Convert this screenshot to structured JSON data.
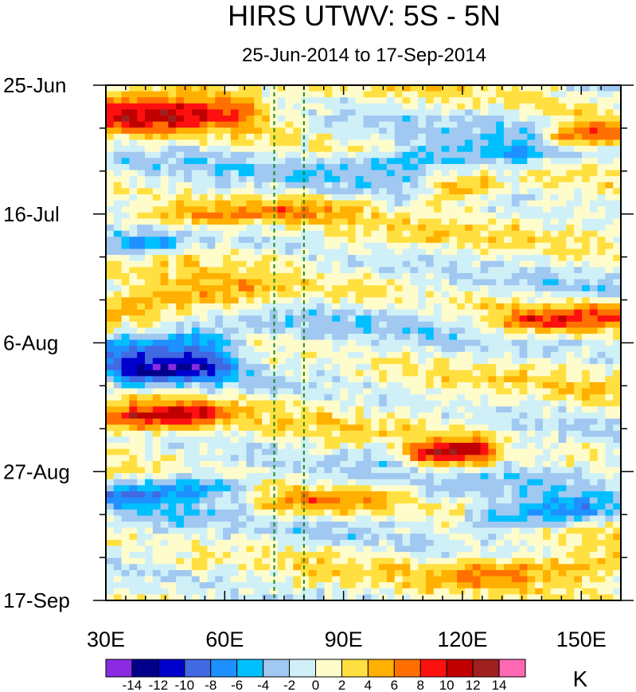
{
  "chart_data": {
    "type": "heatmap",
    "title": "HIRS UTWV: 5S - 5N",
    "subtitle": "25-Jun-2014 to 17-Sep-2014",
    "x_axis": {
      "range": [
        30,
        160
      ],
      "ticks": [
        30,
        60,
        90,
        120,
        150
      ],
      "tick_labels": [
        "30E",
        "60E",
        "90E",
        "120E",
        "150E"
      ]
    },
    "y_axis": {
      "range_days": [
        0,
        84
      ],
      "ticks_days": [
        0,
        21,
        42,
        63,
        84
      ],
      "tick_labels": [
        "25-Jun",
        "16-Jul",
        "6-Aug",
        "27-Aug",
        "17-Sep"
      ]
    },
    "reference_lines_lon": [
      72.5,
      80
    ],
    "colorbar": {
      "unit": "K",
      "levels": [
        -14,
        -12,
        -10,
        -8,
        -6,
        -4,
        -2,
        0,
        2,
        4,
        6,
        8,
        10,
        12,
        14
      ],
      "colors": [
        "#8a2be2",
        "#00008b",
        "#0000cd",
        "#4169e1",
        "#1e90ff",
        "#00bfff",
        "#a0c8f0",
        "#d0f0f8",
        "#fffccc",
        "#ffe040",
        "#ffb000",
        "#ff7000",
        "#ff1010",
        "#c00000",
        "#a02020",
        "#ff69b4"
      ]
    },
    "anomaly_bands": [
      {
        "day": 2,
        "lon": [
          30,
          60
        ],
        "value": 5
      },
      {
        "day": 5,
        "lon": [
          30,
          70
        ],
        "value": 8
      },
      {
        "day": 8,
        "lon": [
          145,
          160
        ],
        "value": 10
      },
      {
        "day": 12,
        "lon": [
          95,
          140
        ],
        "value": -5
      },
      {
        "day": 17,
        "lon": [
          115,
          125
        ],
        "value": 6
      },
      {
        "day": 21,
        "lon": [
          30,
          90
        ],
        "value": 5
      },
      {
        "day": 26,
        "lon": [
          30,
          45
        ],
        "value": -6
      },
      {
        "day": 35,
        "lon": [
          30,
          70
        ],
        "value": 6
      },
      {
        "day": 38,
        "lon": [
          130,
          160
        ],
        "value": 8
      },
      {
        "day": 42,
        "lon": [
          30,
          60
        ],
        "value": -7
      },
      {
        "day": 46,
        "lon": [
          35,
          60
        ],
        "value": -10
      },
      {
        "day": 54,
        "lon": [
          30,
          55
        ],
        "value": 9
      },
      {
        "day": 60,
        "lon": [
          110,
          125
        ],
        "value": 10
      },
      {
        "day": 66,
        "lon": [
          30,
          60
        ],
        "value": -7
      },
      {
        "day": 68,
        "lon": [
          70,
          100
        ],
        "value": 6
      },
      {
        "day": 70,
        "lon": [
          125,
          155
        ],
        "value": -7
      },
      {
        "day": 79,
        "lon": [
          120,
          160
        ],
        "value": 5
      }
    ]
  }
}
